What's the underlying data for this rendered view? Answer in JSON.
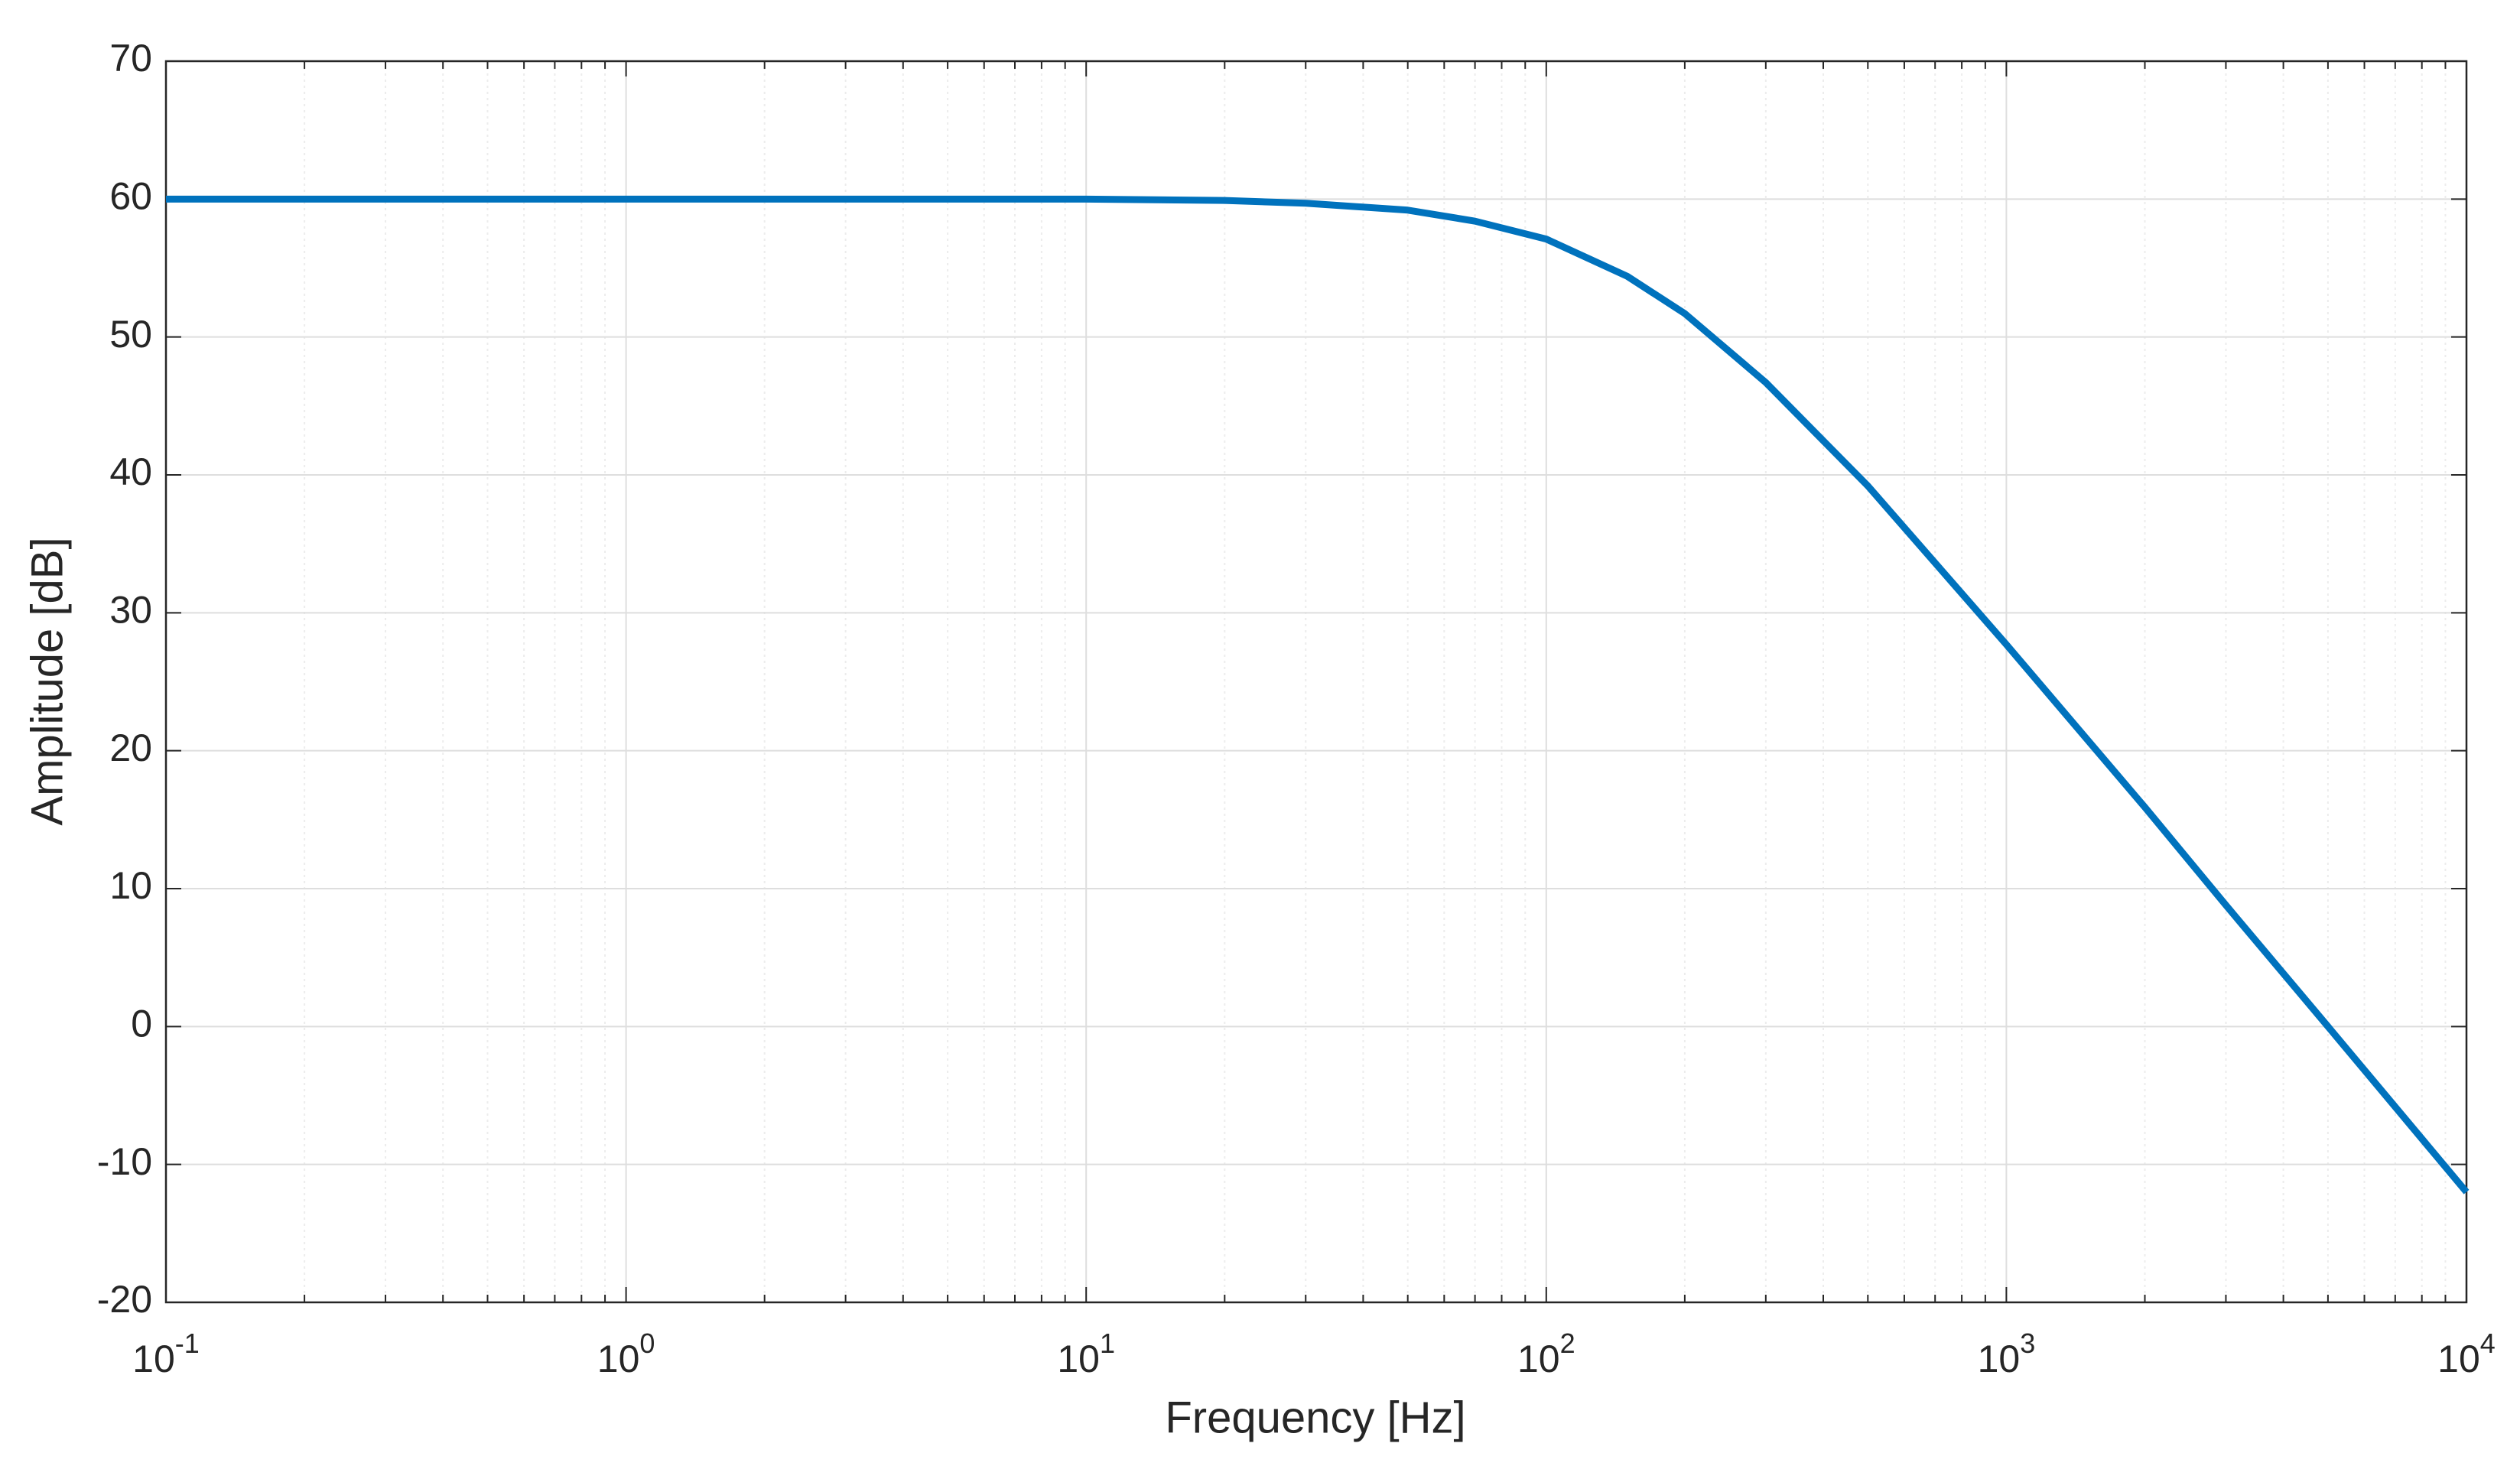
{
  "chart_data": {
    "type": "line",
    "xlabel": "Frequency [Hz]",
    "ylabel": "Amplitude [dB]",
    "x": [
      0.1,
      1,
      10,
      20,
      30,
      50,
      70,
      100,
      150,
      200,
      300,
      500,
      1000,
      2000,
      3000,
      5000,
      10000
    ],
    "series": [
      {
        "name": "Amplitude",
        "color": "#0072bd",
        "values": [
          60,
          60,
          60.0,
          59.9,
          59.7,
          59.2,
          58.4,
          57.1,
          54.4,
          51.7,
          46.7,
          39.2,
          27.7,
          15.9,
          8.8,
          0.0,
          -12.0
        ]
      }
    ],
    "xscale": "log",
    "xlim": [
      0.1,
      10000
    ],
    "xticks": [
      {
        "value": 0.1,
        "label": "10",
        "exponent": "-1"
      },
      {
        "value": 1,
        "label": "10",
        "exponent": "0"
      },
      {
        "value": 10,
        "label": "10",
        "exponent": "1"
      },
      {
        "value": 100,
        "label": "10",
        "exponent": "2"
      },
      {
        "value": 1000,
        "label": "10",
        "exponent": "3"
      },
      {
        "value": 10000,
        "label": "10",
        "exponent": "4"
      }
    ],
    "ylim": [
      -20,
      70
    ],
    "yticks": [
      -20,
      -10,
      0,
      10,
      20,
      30,
      40,
      50,
      60,
      70
    ],
    "grid": true,
    "minor_grid": true
  }
}
